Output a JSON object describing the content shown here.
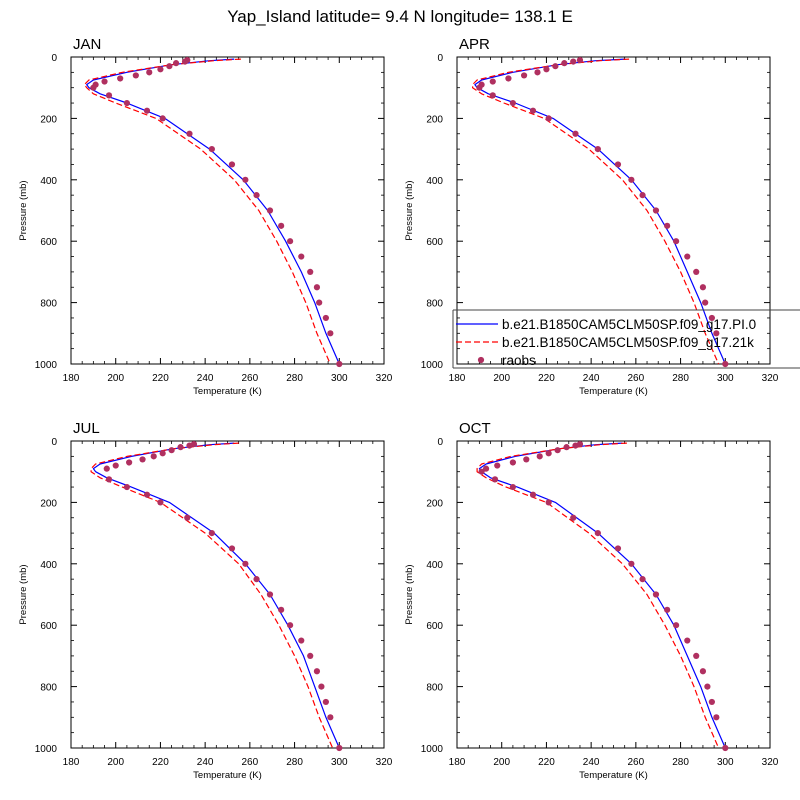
{
  "figure": {
    "title": "Yap_Island  latitude= 9.4 N longitude= 138.1 E"
  },
  "legend": {
    "entries": [
      {
        "label": "b.e21.B1850CAM5CLM50SP.f09_g17.PI.0",
        "style": "solid",
        "color": "#0000ff"
      },
      {
        "label": "b.e21.B1850CAM5CLM50SP.f09_g17.21k",
        "style": "dashed",
        "color": "#ff0000"
      },
      {
        "label": "raobs",
        "style": "marker",
        "color": "#b03060"
      }
    ]
  },
  "chart_data": [
    {
      "type": "line",
      "panel": "JAN",
      "title": "JAN",
      "xlabel": "Temperature (K)",
      "ylabel": "Pressure (mb)",
      "xlim": [
        180,
        320
      ],
      "ylim": [
        1000,
        0
      ],
      "xticks": [
        180,
        200,
        220,
        240,
        260,
        280,
        300,
        320
      ],
      "yticks": [
        0,
        200,
        400,
        600,
        800,
        1000
      ],
      "series": [
        {
          "name": "b.e21.B1850CAM5CLM50SP.f09_g17.PI.0",
          "style": "solid",
          "color": "#0000ff",
          "x": [
            253,
            242,
            225,
            205,
            190,
            187,
            188,
            193,
            205,
            222,
            242,
            257,
            268,
            276,
            283,
            289,
            294,
            300
          ],
          "y": [
            7,
            12,
            25,
            50,
            75,
            90,
            100,
            120,
            150,
            200,
            300,
            400,
            500,
            600,
            700,
            800,
            900,
            1000
          ]
        },
        {
          "name": "b.e21.B1850CAM5CLM50SP.f09_g17.21k",
          "style": "dashed",
          "color": "#ff0000",
          "x": [
            256,
            244,
            225,
            203,
            188,
            186,
            187,
            190,
            200,
            218,
            238,
            253,
            264,
            272,
            279,
            285,
            290,
            296
          ],
          "y": [
            7,
            12,
            25,
            50,
            75,
            90,
            100,
            120,
            150,
            200,
            300,
            400,
            500,
            600,
            700,
            800,
            900,
            1000
          ]
        },
        {
          "name": "raobs",
          "style": "marker",
          "color": "#b03060",
          "x": [
            232,
            231,
            227,
            224,
            220,
            215,
            209,
            202,
            195,
            191,
            190,
            197,
            205,
            214,
            221,
            233,
            243,
            252,
            258,
            263,
            269,
            274,
            278,
            283,
            287,
            290,
            291,
            294,
            296,
            300
          ],
          "y": [
            10,
            15,
            20,
            30,
            40,
            50,
            60,
            70,
            80,
            90,
            100,
            125,
            150,
            175,
            200,
            250,
            300,
            350,
            400,
            450,
            500,
            550,
            600,
            650,
            700,
            750,
            800,
            850,
            900,
            1000
          ]
        }
      ]
    },
    {
      "type": "line",
      "panel": "APR",
      "title": "APR",
      "xlabel": "Temperature (K)",
      "ylabel": "Pressure (mb)",
      "xlim": [
        180,
        320
      ],
      "ylim": [
        1000,
        0
      ],
      "xticks": [
        180,
        200,
        220,
        240,
        260,
        280,
        300,
        320
      ],
      "yticks": [
        0,
        200,
        400,
        600,
        800,
        1000
      ],
      "series": [
        {
          "name": "b.e21.B1850CAM5CLM50SP.f09_g17.PI.0",
          "style": "solid",
          "color": "#0000ff",
          "x": [
            255,
            242,
            225,
            205,
            191,
            188,
            189,
            194,
            206,
            223,
            243,
            258,
            269,
            277,
            283,
            289,
            294,
            300
          ],
          "y": [
            7,
            12,
            25,
            50,
            75,
            90,
            100,
            120,
            150,
            200,
            300,
            400,
            500,
            600,
            700,
            800,
            900,
            1000
          ]
        },
        {
          "name": "b.e21.B1850CAM5CLM50SP.f09_g17.21k",
          "style": "dashed",
          "color": "#ff0000",
          "x": [
            257,
            244,
            225,
            203,
            189,
            187,
            187,
            191,
            201,
            219,
            239,
            254,
            265,
            273,
            280,
            286,
            291,
            297
          ],
          "y": [
            7,
            12,
            25,
            50,
            75,
            90,
            100,
            120,
            150,
            200,
            300,
            400,
            500,
            600,
            700,
            800,
            900,
            1000
          ]
        },
        {
          "name": "raobs",
          "style": "marker",
          "color": "#b03060",
          "x": [
            235,
            232,
            228,
            224,
            220,
            216,
            210,
            203,
            196,
            191,
            190,
            196,
            205,
            214,
            221,
            233,
            243,
            252,
            258,
            263,
            269,
            274,
            278,
            283,
            287,
            290,
            291,
            294,
            296,
            300
          ],
          "y": [
            10,
            15,
            20,
            30,
            40,
            50,
            60,
            70,
            80,
            90,
            100,
            125,
            150,
            175,
            200,
            250,
            300,
            350,
            400,
            450,
            500,
            550,
            600,
            650,
            700,
            750,
            800,
            850,
            900,
            1000
          ]
        }
      ]
    },
    {
      "type": "line",
      "panel": "JUL",
      "title": "JUL",
      "xlabel": "Temperature (K)",
      "ylabel": "Pressure (mb)",
      "xlim": [
        180,
        320
      ],
      "ylim": [
        1000,
        0
      ],
      "xticks": [
        180,
        200,
        220,
        240,
        260,
        280,
        300,
        320
      ],
      "yticks": [
        0,
        200,
        400,
        600,
        800,
        1000
      ],
      "series": [
        {
          "name": "b.e21.B1850CAM5CLM50SP.f09_g17.PI.0",
          "style": "solid",
          "color": "#0000ff",
          "x": [
            253,
            242,
            226,
            207,
            193,
            190,
            191,
            196,
            207,
            224,
            244,
            258,
            269,
            277,
            284,
            289,
            294,
            300
          ],
          "y": [
            7,
            12,
            25,
            50,
            75,
            90,
            100,
            120,
            150,
            200,
            300,
            400,
            500,
            600,
            700,
            800,
            900,
            1000
          ]
        },
        {
          "name": "b.e21.B1850CAM5CLM50SP.f09_g17.21k",
          "style": "dashed",
          "color": "#ff0000",
          "x": [
            255,
            244,
            226,
            205,
            191,
            189,
            189,
            193,
            203,
            220,
            240,
            255,
            265,
            273,
            280,
            286,
            291,
            297
          ],
          "y": [
            7,
            12,
            25,
            50,
            75,
            90,
            100,
            120,
            150,
            200,
            300,
            400,
            500,
            600,
            700,
            800,
            900,
            1000
          ]
        },
        {
          "name": "raobs",
          "style": "marker",
          "color": "#b03060",
          "x": [
            235,
            233,
            229,
            225,
            221,
            217,
            212,
            206,
            200,
            196,
            197,
            205,
            214,
            220,
            232,
            243,
            252,
            258,
            263,
            269,
            274,
            278,
            283,
            287,
            290,
            292,
            294,
            296,
            300
          ],
          "y": [
            10,
            15,
            20,
            30,
            40,
            50,
            60,
            70,
            80,
            90,
            125,
            150,
            175,
            200,
            250,
            300,
            350,
            400,
            450,
            500,
            550,
            600,
            650,
            700,
            750,
            800,
            850,
            900,
            1000
          ]
        }
      ]
    },
    {
      "type": "line",
      "panel": "OCT",
      "title": "OCT",
      "xlabel": "Temperature (K)",
      "ylabel": "Pressure (mb)",
      "xlim": [
        180,
        320
      ],
      "ylim": [
        1000,
        0
      ],
      "xticks": [
        180,
        200,
        220,
        240,
        260,
        280,
        300,
        320
      ],
      "yticks": [
        0,
        200,
        400,
        600,
        800,
        1000
      ],
      "series": [
        {
          "name": "b.e21.B1850CAM5CLM50SP.f09_g17.PI.0",
          "style": "solid",
          "color": "#0000ff",
          "x": [
            254,
            242,
            226,
            206,
            193,
            190,
            191,
            195,
            207,
            224,
            243,
            258,
            269,
            277,
            283,
            289,
            294,
            300
          ],
          "y": [
            7,
            12,
            25,
            50,
            75,
            90,
            100,
            120,
            150,
            200,
            300,
            400,
            500,
            600,
            700,
            800,
            900,
            1000
          ]
        },
        {
          "name": "b.e21.B1850CAM5CLM50SP.f09_g17.21k",
          "style": "dashed",
          "color": "#ff0000",
          "x": [
            256,
            244,
            226,
            204,
            191,
            189,
            189,
            193,
            202,
            220,
            239,
            254,
            265,
            273,
            280,
            286,
            291,
            297
          ],
          "y": [
            7,
            12,
            25,
            50,
            75,
            90,
            100,
            120,
            150,
            200,
            300,
            400,
            500,
            600,
            700,
            800,
            900,
            1000
          ]
        },
        {
          "name": "raobs",
          "style": "marker",
          "color": "#b03060",
          "x": [
            235,
            233,
            229,
            225,
            221,
            217,
            211,
            205,
            198,
            193,
            191,
            197,
            205,
            214,
            221,
            232,
            243,
            252,
            258,
            263,
            269,
            274,
            278,
            283,
            287,
            290,
            292,
            294,
            296,
            300
          ],
          "y": [
            10,
            15,
            20,
            30,
            40,
            50,
            60,
            70,
            80,
            90,
            100,
            125,
            150,
            175,
            200,
            250,
            300,
            350,
            400,
            450,
            500,
            550,
            600,
            650,
            700,
            750,
            800,
            850,
            900,
            1000
          ]
        }
      ]
    }
  ]
}
